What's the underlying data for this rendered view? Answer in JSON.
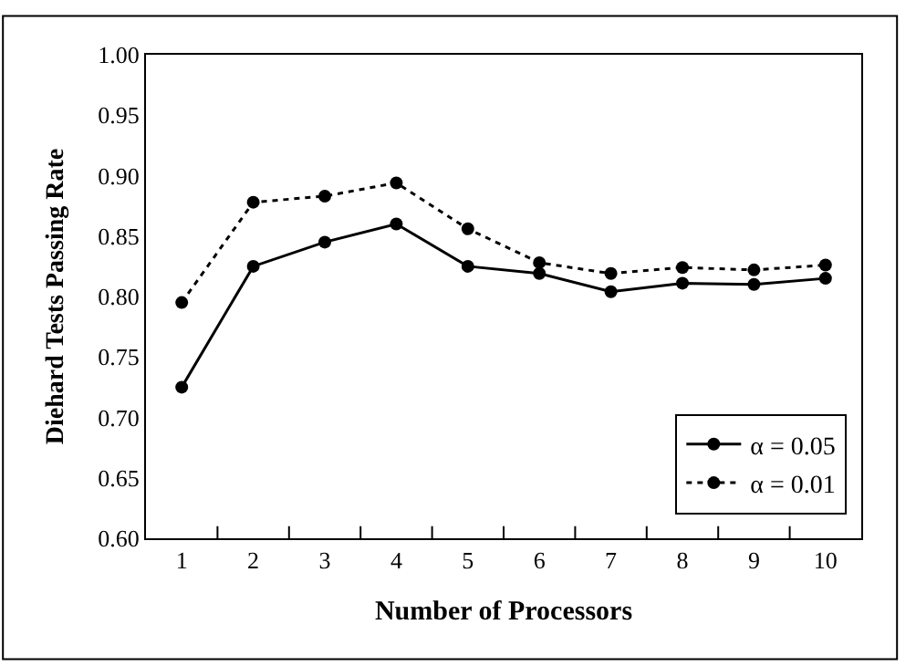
{
  "chart_data": {
    "type": "line",
    "xlabel": "Number of Processors",
    "ylabel": "Diehard Tests Passing Rate",
    "categories": [
      "1",
      "2",
      "3",
      "4",
      "5",
      "6",
      "7",
      "8",
      "9",
      "10"
    ],
    "series": [
      {
        "name": "α = 0.05",
        "color": "#000000",
        "line_style": "solid",
        "values": [
          0.725,
          0.825,
          0.845,
          0.86,
          0.825,
          0.819,
          0.804,
          0.811,
          0.81,
          0.815
        ]
      },
      {
        "name": "α = 0.01",
        "color": "#000000",
        "line_style": "dotted",
        "values": [
          0.795,
          0.878,
          0.883,
          0.894,
          0.856,
          0.828,
          0.819,
          0.824,
          0.822,
          0.826
        ]
      }
    ],
    "ylim": [
      0.6,
      1.0
    ],
    "yticks": [
      {
        "value": 0.6,
        "label": "0.60"
      },
      {
        "value": 0.65,
        "label": "0.65"
      },
      {
        "value": 0.7,
        "label": "0.70"
      },
      {
        "value": 0.75,
        "label": "0.75"
      },
      {
        "value": 0.8,
        "label": "0.80"
      },
      {
        "value": 0.85,
        "label": "0.85"
      },
      {
        "value": 0.9,
        "label": "0.90"
      },
      {
        "value": 0.95,
        "label": "0.95"
      },
      {
        "value": 1.0,
        "label": "1.00"
      }
    ],
    "marker": "circle",
    "legend": "bottom right"
  }
}
